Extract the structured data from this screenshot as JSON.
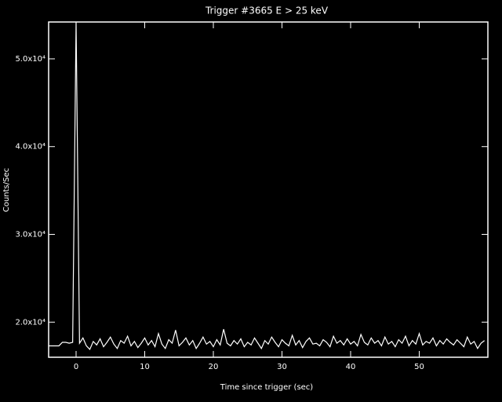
{
  "chart_data": {
    "type": "line",
    "title": "Trigger #3665 E > 25 keV",
    "x_label": "Time since trigger (sec)",
    "y_label": "Counts/Sec",
    "xlim": [
      -4,
      60
    ],
    "ylim": [
      16000,
      54200
    ],
    "xticks": [
      0,
      10,
      20,
      30,
      40,
      50
    ],
    "yticks": [
      {
        "value": 20000,
        "label": "2.0x10⁴"
      },
      {
        "value": 30000,
        "label": "3.0x10⁴"
      },
      {
        "value": 40000,
        "label": "4.0x10⁴"
      },
      {
        "value": 50000,
        "label": "5.0x10⁴"
      }
    ],
    "x": [
      -4,
      -3.5,
      -3,
      -2.5,
      -2,
      -1.5,
      -1,
      -0.5,
      0,
      0.5,
      1,
      1.5,
      2,
      2.5,
      3,
      3.5,
      4,
      4.5,
      5,
      5.5,
      6,
      6.5,
      7,
      7.5,
      8,
      8.5,
      9,
      9.5,
      10,
      10.5,
      11,
      11.5,
      12,
      12.5,
      13,
      13.5,
      14,
      14.5,
      15,
      15.5,
      16,
      16.5,
      17,
      17.5,
      18,
      18.5,
      19,
      19.5,
      20,
      20.5,
      21,
      21.5,
      22,
      22.5,
      23,
      23.5,
      24,
      24.5,
      25,
      25.5,
      26,
      26.5,
      27,
      27.5,
      28,
      28.5,
      29,
      29.5,
      30,
      30.5,
      31,
      31.5,
      32,
      32.5,
      33,
      33.5,
      34,
      34.5,
      35,
      35.5,
      36,
      36.5,
      37,
      37.5,
      38,
      38.5,
      39,
      39.5,
      40,
      40.5,
      41,
      41.5,
      42,
      42.5,
      43,
      43.5,
      44,
      44.5,
      45,
      45.5,
      46,
      46.5,
      47,
      47.5,
      48,
      48.5,
      49,
      49.5,
      50,
      50.5,
      51,
      51.5,
      52,
      52.5,
      53,
      53.5,
      54,
      54.5,
      55,
      55.5,
      56,
      56.5,
      57,
      57.5,
      58,
      58.5,
      59,
      59.5
    ],
    "series": [
      {
        "color": "#ffffff",
        "values": [
          17300,
          17300,
          17300,
          17300,
          17700,
          17700,
          17600,
          17700,
          54200,
          17600,
          18200,
          17300,
          16900,
          17800,
          17400,
          18100,
          17200,
          17700,
          18300,
          17500,
          17000,
          17900,
          17600,
          18400,
          17300,
          17800,
          17100,
          17600,
          18200,
          17400,
          17900,
          17200,
          18700,
          17500,
          17000,
          18000,
          17600,
          19100,
          17300,
          17700,
          18200,
          17400,
          17900,
          17000,
          17600,
          18300,
          17500,
          17800,
          17200,
          18000,
          17400,
          19200,
          17600,
          17300,
          17900,
          17500,
          18100,
          17200,
          17700,
          17400,
          18200,
          17600,
          17000,
          17900,
          17500,
          18300,
          17700,
          17200,
          18000,
          17600,
          17300,
          18500,
          17400,
          17900,
          17100,
          17800,
          18200,
          17500,
          17600,
          17300,
          18000,
          17700,
          17200,
          18400,
          17600,
          17900,
          17400,
          18100,
          17500,
          17800,
          17300,
          18600,
          17700,
          17400,
          18200,
          17600,
          17900,
          17300,
          18300,
          17500,
          17800,
          17200,
          18000,
          17600,
          18400,
          17300,
          17900,
          17500,
          18700,
          17400,
          17800,
          17600,
          18200,
          17300,
          17900,
          17500,
          18100,
          17700,
          17400,
          18000,
          17600,
          17200,
          18300,
          17500,
          17800,
          17000,
          17600,
          17900
        ]
      }
    ]
  }
}
